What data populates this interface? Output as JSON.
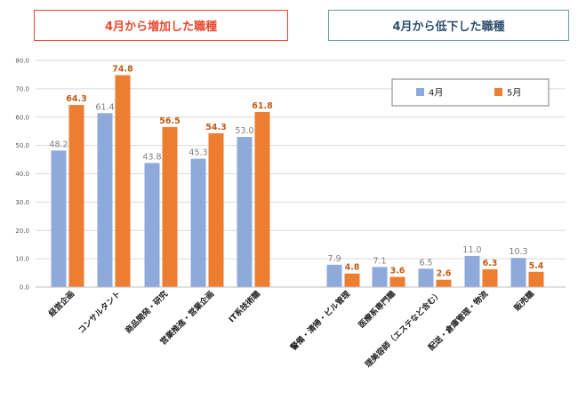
{
  "headers": {
    "increase": "4月から増加した職種",
    "decrease": "4月から低下した職種"
  },
  "colors": {
    "april": "#8eaadb",
    "may": "#ed7d31",
    "april_label": "#808080",
    "may_label": "#c55a11",
    "increase_border": "#e8492f",
    "increase_text": "#e8492f",
    "decrease_border": "#6a9a9c",
    "decrease_text": "#2f4f6f",
    "grid": "#d9d9d9"
  },
  "chart_data": {
    "type": "bar",
    "ylim": [
      0,
      80
    ],
    "yticks": [
      "0.0",
      "10.0",
      "20.0",
      "30.0",
      "40.0",
      "50.0",
      "60.0",
      "70.0",
      "80.0"
    ],
    "grid": true,
    "legend_position": "top-right",
    "categories": [
      "経営企画",
      "コンサルタント",
      "商品開発・研究",
      "営業推進・営業企画",
      "IT系技術職",
      "警備・清掃・ビル管理",
      "医療系専門職",
      "理美容師（エステなど含む）",
      "配送・倉庫管理・物流",
      "販売職"
    ],
    "series": [
      {
        "name": "4月",
        "values": [
          48.2,
          61.4,
          43.8,
          45.3,
          53.0,
          7.9,
          7.1,
          6.5,
          11.0,
          10.3
        ],
        "labels": [
          "48.2",
          "61.4",
          "43.8",
          "45.3",
          "53.0",
          "7.9",
          "7.1",
          "6.5",
          "11.0",
          "10.3"
        ]
      },
      {
        "name": "5月",
        "values": [
          64.3,
          74.8,
          56.5,
          54.3,
          61.8,
          4.8,
          3.6,
          2.6,
          6.3,
          5.4
        ],
        "labels": [
          "64.3",
          "74.8",
          "56.5",
          "54.3",
          "61.8",
          "4.8",
          "3.6",
          "2.6",
          "6.3",
          "5.4"
        ]
      }
    ]
  }
}
